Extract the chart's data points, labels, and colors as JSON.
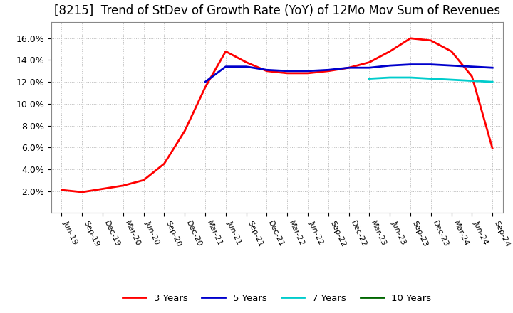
{
  "title": "[8215]  Trend of StDev of Growth Rate (YoY) of 12Mo Mov Sum of Revenues",
  "title_fontsize": 12,
  "background_color": "#ffffff",
  "plot_bg_color": "#ffffff",
  "grid_color": "#aaaaaa",
  "ylim": [
    0.0,
    0.175
  ],
  "yticks": [
    0.02,
    0.04,
    0.06,
    0.08,
    0.1,
    0.12,
    0.14,
    0.16
  ],
  "xlabel_rotation": -65,
  "legend_labels": [
    "3 Years",
    "5 Years",
    "7 Years",
    "10 Years"
  ],
  "legend_colors": [
    "#ff0000",
    "#0000cc",
    "#00cccc",
    "#006600"
  ],
  "xtick_labels": [
    "Jun-19",
    "Sep-19",
    "Dec-19",
    "Mar-20",
    "Jun-20",
    "Sep-20",
    "Dec-20",
    "Mar-21",
    "Jun-21",
    "Sep-21",
    "Dec-21",
    "Mar-22",
    "Jun-22",
    "Sep-22",
    "Dec-22",
    "Mar-23",
    "Jun-23",
    "Sep-23",
    "Dec-23",
    "Mar-24",
    "Jun-24",
    "Sep-24"
  ],
  "series_3y_x": [
    0,
    1,
    2,
    3,
    4,
    5,
    6,
    7,
    8,
    9,
    10,
    11,
    12,
    13,
    14,
    15,
    16,
    17,
    18,
    19,
    20,
    21
  ],
  "series_3y_y": [
    0.021,
    0.019,
    0.022,
    0.025,
    0.03,
    0.045,
    0.075,
    0.115,
    0.148,
    0.138,
    0.13,
    0.128,
    0.128,
    0.13,
    0.133,
    0.138,
    0.148,
    0.16,
    0.158,
    0.148,
    0.125,
    0.059
  ],
  "series_5y_x": [
    7,
    8,
    9,
    10,
    11,
    12,
    13,
    14,
    15,
    16,
    17,
    18,
    19,
    20,
    21
  ],
  "series_5y_y": [
    0.12,
    0.134,
    0.134,
    0.131,
    0.13,
    0.13,
    0.131,
    0.133,
    0.133,
    0.135,
    0.136,
    0.136,
    0.135,
    0.134,
    0.133
  ],
  "series_7y_x": [
    15,
    16,
    17,
    18,
    19,
    20,
    21
  ],
  "series_7y_y": [
    0.123,
    0.124,
    0.124,
    0.123,
    0.122,
    0.121,
    0.12
  ],
  "series_10y_x": [],
  "series_10y_y": []
}
